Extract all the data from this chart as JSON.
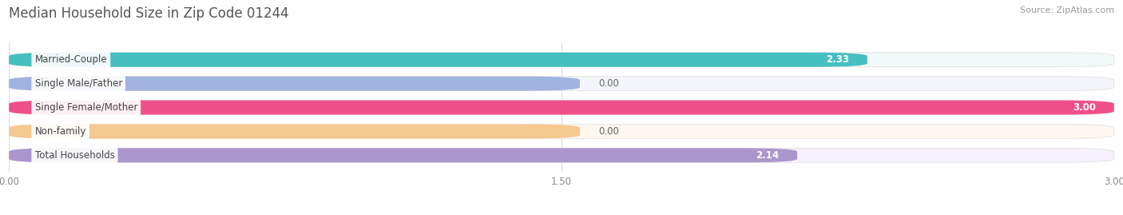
{
  "title": "Median Household Size in Zip Code 01244",
  "source": "Source: ZipAtlas.com",
  "categories": [
    "Married-Couple",
    "Single Male/Father",
    "Single Female/Mother",
    "Non-family",
    "Total Households"
  ],
  "values": [
    2.33,
    0.0,
    3.0,
    0.0,
    2.14
  ],
  "bar_colors": [
    "#45BFBF",
    "#A0B4E0",
    "#F0508A",
    "#F5C890",
    "#AA96CC"
  ],
  "bar_bg_colors": [
    "#F0F8F8",
    "#F4F5FA",
    "#FEF0F5",
    "#FEF7EF",
    "#F5F0FA"
  ],
  "zero_bar_widths": [
    0.0,
    1.55,
    0.0,
    1.55,
    0.0
  ],
  "xlim": [
    0,
    3.0
  ],
  "xticks": [
    0.0,
    1.5,
    3.0
  ],
  "xtick_labels": [
    "0.00",
    "1.50",
    "3.00"
  ],
  "title_fontsize": 12,
  "bar_label_fontsize": 8.5,
  "category_fontsize": 8.5,
  "tick_fontsize": 8.5,
  "source_fontsize": 8.0,
  "background_color": "#FFFFFF",
  "bar_height": 0.6,
  "label_pill_color": "#FFFFFF",
  "label_text_color": "#444444"
}
